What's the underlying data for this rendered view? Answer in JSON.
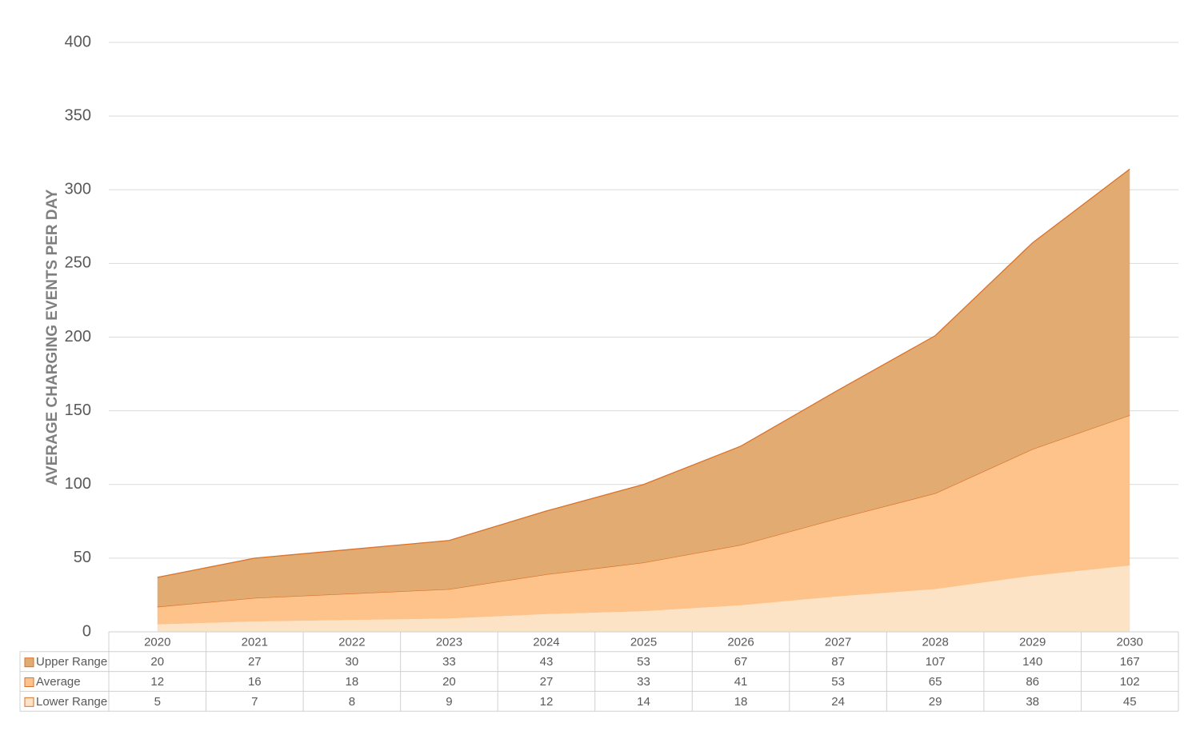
{
  "chart_data": {
    "type": "area",
    "stacked": true,
    "y_label": "AVERAGE CHARGING EVENTS PER DAY",
    "categories": [
      "2020",
      "2021",
      "2022",
      "2023",
      "2024",
      "2025",
      "2026",
      "2027",
      "2028",
      "2029",
      "2030"
    ],
    "series": [
      {
        "name": "Upper Range",
        "color": "#e2ab72",
        "values": [
          20,
          27,
          30,
          33,
          43,
          53,
          67,
          87,
          107,
          140,
          167
        ]
      },
      {
        "name": "Average",
        "color": "#fdc38a",
        "values": [
          12,
          16,
          18,
          20,
          27,
          33,
          41,
          53,
          65,
          86,
          102
        ]
      },
      {
        "name": "Lower Range",
        "color": "#fde3c6",
        "values": [
          5,
          7,
          8,
          9,
          12,
          14,
          18,
          24,
          29,
          38,
          45
        ]
      }
    ],
    "line_color": "#d9722a",
    "ylim": [
      0,
      400
    ],
    "yticks": [
      0,
      50,
      100,
      150,
      200,
      250,
      300,
      350,
      400
    ],
    "grid": true,
    "data_table": true
  }
}
